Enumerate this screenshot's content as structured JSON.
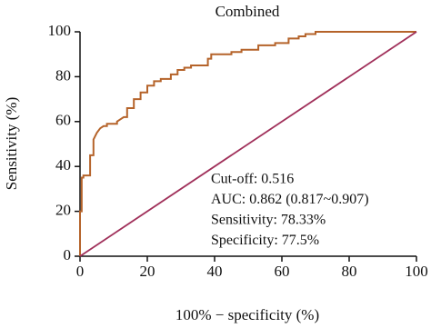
{
  "chart_data": {
    "type": "line",
    "title": "Combined",
    "x_label": "100% − specificity (%)",
    "y_label": "Sensitivity (%)",
    "xlim": [
      0,
      100
    ],
    "ylim": [
      0,
      100
    ],
    "xticks": [
      0,
      20,
      40,
      60,
      80,
      100
    ],
    "yticks": [
      0,
      20,
      40,
      60,
      80,
      100
    ],
    "annotations": [
      "Cut-off: 0.516",
      "AUC: 0.862 (0.817~0.907)",
      "Sensitivity: 78.33%",
      "Specificity: 77.5%"
    ],
    "series": [
      {
        "color": "#b5632a",
        "x": [
          0,
          0,
          0.5,
          0.5,
          1,
          1,
          3,
          3,
          4,
          4,
          5,
          6,
          7,
          8,
          8,
          11,
          11,
          12,
          13,
          14,
          14,
          16,
          16,
          18,
          18,
          20,
          20,
          22,
          22,
          24,
          24,
          27,
          27,
          29,
          29,
          31,
          31,
          33,
          33,
          38,
          38,
          39,
          39,
          45,
          45,
          48,
          48,
          53,
          53,
          58,
          58,
          62,
          62,
          65,
          65,
          67,
          67,
          70,
          70,
          100
        ],
        "values": [
          0,
          20,
          20,
          35,
          35,
          36,
          36,
          45,
          45,
          52,
          55,
          57,
          58,
          58,
          59,
          59,
          60,
          61,
          62,
          62,
          66,
          66,
          70,
          70,
          73,
          73,
          76,
          76,
          78,
          78,
          79,
          79,
          81,
          81,
          83,
          83,
          84,
          84,
          85,
          85,
          88,
          88,
          90,
          90,
          91,
          91,
          92,
          92,
          94,
          94,
          95,
          95,
          97,
          97,
          98,
          98,
          99,
          99,
          100,
          100
        ]
      },
      {
        "color": "#a0305a",
        "x": [
          0,
          100
        ],
        "values": [
          0,
          100
        ]
      }
    ]
  }
}
